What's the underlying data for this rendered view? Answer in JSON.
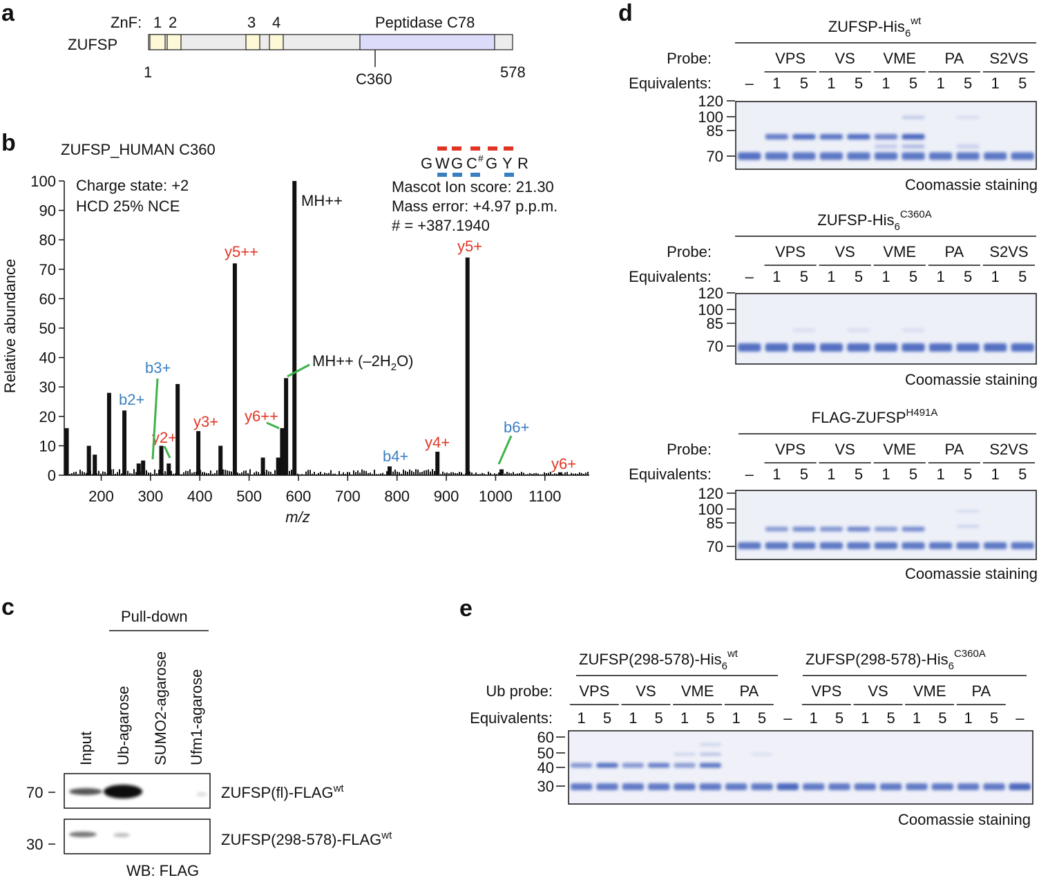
{
  "panels": {
    "a": {
      "label": "a",
      "protein": "ZUFSP",
      "znf_label": "ZnF:",
      "znf_numbers": [
        "1",
        "2",
        "3",
        "4"
      ],
      "domain_label": "Peptidase C78",
      "start": "1",
      "end": "578",
      "site": "C360"
    },
    "b": {
      "label": "b",
      "title": "ZUFSP_HUMAN  C360",
      "charge": "Charge state: +2",
      "hcd": "HCD 25% NCE",
      "mascot": "Mascot Ion score: 21.30",
      "mass_error": "Mass error: +4.97 p.p.m.",
      "hash_note": "# = +387.1940",
      "peptide": [
        "G",
        "W",
        "G",
        "C",
        "#",
        "G",
        "Y",
        "R"
      ],
      "ylabel": "Relative abundance",
      "xlabel": "m/z"
    },
    "c": {
      "label": "c",
      "pulldown": "Pull-down",
      "lanes": [
        "Input",
        "Ub-agarose",
        "SUMO2-agarose",
        "Ufm1-agarose"
      ],
      "blot1_mw": "70",
      "blot2_mw": "30",
      "blot1_label": "ZUFSP(fl)-FLAG",
      "blot1_sup": "wt",
      "blot2_label": "ZUFSP(298-578)-FLAG",
      "blot2_sup": "wt",
      "wb": "WB: FLAG"
    },
    "d": {
      "label": "d",
      "gels": [
        {
          "title_main": "ZUFSP-His",
          "title_sub": "6",
          "title_sup": "wt"
        },
        {
          "title_main": "ZUFSP-His",
          "title_sub": "6",
          "title_sup": "C360A"
        },
        {
          "title_main": "FLAG-ZUFSP",
          "title_sub": "",
          "title_sup": "H491A"
        }
      ],
      "probe_label": "Probe:",
      "equiv_label": "Equivalents:",
      "probes": [
        "VPS",
        "VS",
        "VME",
        "PA",
        "S2VS"
      ],
      "equivalents": [
        "–",
        "1",
        "5",
        "1",
        "5",
        "1",
        "5",
        "1",
        "5",
        "1",
        "5"
      ],
      "mw_markers": [
        "120",
        "100",
        "85",
        "70"
      ],
      "stain": "Coomassie staining"
    },
    "e": {
      "label": "e",
      "group1_main": "ZUFSP(298-578)-His",
      "group1_sub": "6",
      "group1_sup": "wt",
      "group2_main": "ZUFSP(298-578)-His",
      "group2_sub": "6",
      "group2_sup": "C360A",
      "probe_label": "Ub probe:",
      "equiv_label": "Equivalents:",
      "probes": [
        "VPS",
        "VS",
        "VME",
        "PA",
        "VPS",
        "VS",
        "VME",
        "PA"
      ],
      "equivalents": [
        "1",
        "5",
        "1",
        "5",
        "1",
        "5",
        "1",
        "5",
        "–",
        "1",
        "5",
        "1",
        "5",
        "1",
        "5",
        "1",
        "5",
        "–"
      ],
      "mw_markers": [
        "60",
        "50",
        "40",
        "30"
      ],
      "stain": "Coomassie staining"
    }
  },
  "chart_data": {
    "type": "bar",
    "title": "ZUFSP_HUMAN  C360",
    "xlabel": "m/z",
    "ylabel": "Relative abundance",
    "xlim": [
      125,
      1190
    ],
    "ylim": [
      0,
      100
    ],
    "xticks": [
      200,
      300,
      400,
      500,
      600,
      700,
      800,
      900,
      1000,
      1100
    ],
    "yticks": [
      0,
      10,
      20,
      30,
      40,
      50,
      60,
      70,
      80,
      90,
      100
    ],
    "peaks": [
      {
        "mz": 130,
        "value": 16
      },
      {
        "mz": 175,
        "value": 10
      },
      {
        "mz": 187,
        "value": 7
      },
      {
        "mz": 216,
        "value": 28
      },
      {
        "mz": 247,
        "value": 22
      },
      {
        "mz": 276,
        "value": 4
      },
      {
        "mz": 285,
        "value": 5
      },
      {
        "mz": 322,
        "value": 10
      },
      {
        "mz": 337,
        "value": 4
      },
      {
        "mz": 355,
        "value": 31
      },
      {
        "mz": 397,
        "value": 15
      },
      {
        "mz": 442,
        "value": 10
      },
      {
        "mz": 471,
        "value": 72
      },
      {
        "mz": 528,
        "value": 6
      },
      {
        "mz": 559,
        "value": 6
      },
      {
        "mz": 567,
        "value": 16
      },
      {
        "mz": 575,
        "value": 33
      },
      {
        "mz": 592,
        "value": 100
      },
      {
        "mz": 785,
        "value": 3
      },
      {
        "mz": 882,
        "value": 8
      },
      {
        "mz": 943,
        "value": 74
      },
      {
        "mz": 1012,
        "value": 2
      },
      {
        "mz": 1131,
        "value": 1
      }
    ],
    "annotations": [
      {
        "text": "MH++",
        "color": "#111111"
      },
      {
        "text": "MH++ (–2H",
        "sub": "2",
        "tail": "O)",
        "color": "#111111"
      },
      {
        "text": "y5++",
        "color": "#e03524"
      },
      {
        "text": "y5+",
        "color": "#e03524"
      },
      {
        "text": "y3+",
        "color": "#e03524"
      },
      {
        "text": "y2+",
        "color": "#e03524"
      },
      {
        "text": "y6++",
        "color": "#e03524"
      },
      {
        "text": "y4+",
        "color": "#e03524"
      },
      {
        "text": "y6+",
        "color": "#e03524"
      },
      {
        "text": "b3+",
        "color": "#3a7fc0"
      },
      {
        "text": "b2+",
        "color": "#3a7fc0"
      },
      {
        "text": "b4+",
        "color": "#3a7fc0"
      },
      {
        "text": "b6+",
        "color": "#3a7fc0"
      }
    ]
  }
}
